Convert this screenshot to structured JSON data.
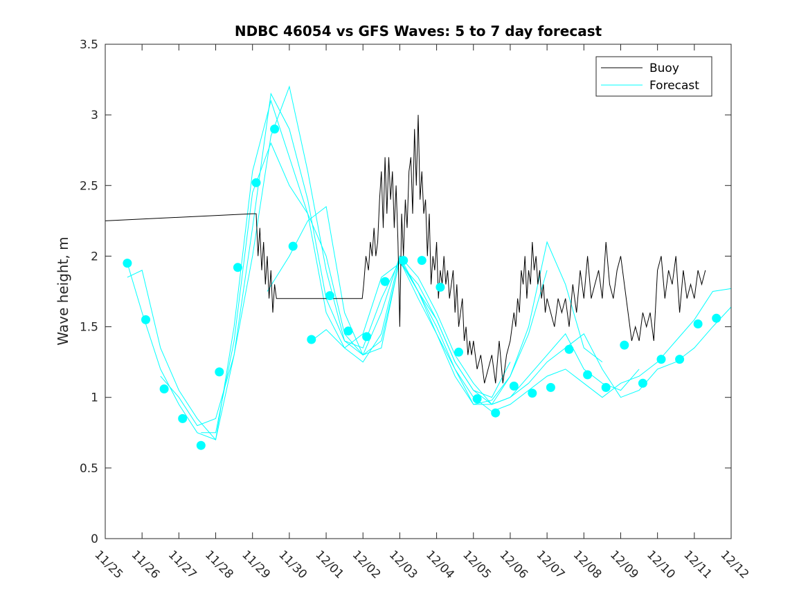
{
  "chart_data": {
    "type": "line",
    "title": "NDBC 46054 vs GFS Waves: 5 to 7 day forecast",
    "xlabel": "",
    "ylabel": "Wave height, m",
    "xlim": [
      0,
      17
    ],
    "ylim": [
      0,
      3.5
    ],
    "x_tick_labels": [
      "11/25",
      "11/26",
      "11/27",
      "11/28",
      "11/29",
      "11/30",
      "12/01",
      "12/02",
      "12/03",
      "12/04",
      "12/05",
      "12/06",
      "12/07",
      "12/08",
      "12/09",
      "12/10",
      "12/11",
      "12/12"
    ],
    "y_ticks": [
      0,
      0.5,
      1,
      1.5,
      2,
      2.5,
      3,
      3.5
    ],
    "y_tick_labels": [
      "0",
      "0.5",
      "1",
      "1.5",
      "2",
      "2.5",
      "3",
      "3.5"
    ],
    "colors": {
      "buoy": "#000000",
      "forecast": "#00FFFF",
      "axes": "#262626"
    },
    "legend": {
      "position": "top-right",
      "entries": [
        "Buoy",
        "Forecast"
      ]
    },
    "buoy_series": {
      "name": "Buoy",
      "x": [
        0,
        4.0,
        4.05,
        4.1,
        4.15,
        4.2,
        4.25,
        4.3,
        4.35,
        4.4,
        4.45,
        4.5,
        4.55,
        4.6,
        4.65,
        4.7,
        4.75,
        5.0,
        5.5,
        6.0,
        6.5,
        6.98,
        7.02,
        7.08,
        7.15,
        7.2,
        7.25,
        7.3,
        7.35,
        7.4,
        7.45,
        7.5,
        7.55,
        7.6,
        7.65,
        7.7,
        7.75,
        7.8,
        7.85,
        7.9,
        7.95,
        8.0,
        8.05,
        8.1,
        8.15,
        8.2,
        8.25,
        8.3,
        8.35,
        8.4,
        8.45,
        8.5,
        8.55,
        8.6,
        8.65,
        8.7,
        8.75,
        8.8,
        8.85,
        8.9,
        8.95,
        9.0,
        9.05,
        9.1,
        9.15,
        9.2,
        9.25,
        9.3,
        9.35,
        9.4,
        9.45,
        9.5,
        9.55,
        9.6,
        9.65,
        9.7,
        9.75,
        9.8,
        9.85,
        9.9,
        9.95,
        10.0,
        10.1,
        10.2,
        10.3,
        10.4,
        10.5,
        10.6,
        10.7,
        10.8,
        10.9,
        11.0,
        11.05,
        11.1,
        11.15,
        11.2,
        11.25,
        11.3,
        11.35,
        11.4,
        11.45,
        11.5,
        11.55,
        11.6,
        11.65,
        11.7,
        11.75,
        11.8,
        11.85,
        11.9,
        11.95,
        12.0,
        12.1,
        12.2,
        12.3,
        12.4,
        12.5,
        12.6,
        12.7,
        12.8,
        12.9,
        13.0,
        13.1,
        13.2,
        13.3,
        13.4,
        13.5,
        13.6,
        13.7,
        13.8,
        13.9,
        14.0,
        14.1,
        14.2,
        14.3,
        14.4,
        14.5,
        14.6,
        14.7,
        14.8,
        14.9,
        15.0,
        15.1,
        15.2,
        15.3,
        15.4,
        15.5,
        15.6,
        15.7,
        15.8,
        15.9,
        16.0,
        16.1,
        16.2,
        16.3
      ],
      "y": [
        2.25,
        2.3,
        2.3,
        2.3,
        2.0,
        2.2,
        1.9,
        2.1,
        1.8,
        2.0,
        1.7,
        1.9,
        1.6,
        1.8,
        1.7,
        1.7,
        1.7,
        1.7,
        1.7,
        1.7,
        1.7,
        1.7,
        1.8,
        2.0,
        1.9,
        2.1,
        2.0,
        2.2,
        2.0,
        2.1,
        2.4,
        2.6,
        2.2,
        2.7,
        2.3,
        2.7,
        2.4,
        2.6,
        2.2,
        2.5,
        2.1,
        1.5,
        2.3,
        2.0,
        2.4,
        2.2,
        2.6,
        2.7,
        2.3,
        2.9,
        2.5,
        3.0,
        2.4,
        2.6,
        2.3,
        2.4,
        2.0,
        2.3,
        1.8,
        2.0,
        1.9,
        2.1,
        1.7,
        1.9,
        1.8,
        2.0,
        1.8,
        1.9,
        1.7,
        1.8,
        1.9,
        1.6,
        1.8,
        1.5,
        1.6,
        1.7,
        1.4,
        1.5,
        1.3,
        1.4,
        1.3,
        1.4,
        1.2,
        1.3,
        1.1,
        1.2,
        1.3,
        1.1,
        1.4,
        1.1,
        1.3,
        1.4,
        1.5,
        1.6,
        1.5,
        1.7,
        1.6,
        1.9,
        1.8,
        2.0,
        1.7,
        1.9,
        1.8,
        2.1,
        1.9,
        2.0,
        1.8,
        1.9,
        1.7,
        1.8,
        1.6,
        1.7,
        1.6,
        1.5,
        1.7,
        1.6,
        1.7,
        1.5,
        1.8,
        1.6,
        1.9,
        1.7,
        2.0,
        1.7,
        1.8,
        1.9,
        1.7,
        2.1,
        1.8,
        1.7,
        1.9,
        2.0,
        1.8,
        1.6,
        1.4,
        1.5,
        1.4,
        1.6,
        1.5,
        1.6,
        1.4,
        1.9,
        2.0,
        1.7,
        1.9,
        1.8,
        2.0,
        1.6,
        1.9,
        1.7,
        1.8,
        1.7,
        1.9,
        1.8,
        1.9
      ]
    },
    "forecast_series": [
      {
        "name": "Forecast",
        "x": [
          0.6,
          1.0,
          1.5,
          2.0,
          2.5,
          3.0,
          3.5,
          4.0,
          4.5,
          5.0,
          5.5,
          6.0,
          6.5,
          7.0,
          7.5,
          8.0,
          8.5,
          9.0,
          9.5,
          10.0,
          10.5,
          11.0
        ],
        "y": [
          1.95,
          1.6,
          1.2,
          0.95,
          0.75,
          0.7,
          1.5,
          2.6,
          3.1,
          2.7,
          2.3,
          1.6,
          1.35,
          1.45,
          1.85,
          1.95,
          1.8,
          1.55,
          1.25,
          1.05,
          1.0,
          1.25
        ]
      },
      {
        "name": "Forecast",
        "x": [
          0.6,
          1.0,
          1.5,
          2.0,
          2.5,
          3.0,
          3.5,
          4.0,
          4.5,
          5.0,
          5.5,
          6.0,
          6.5,
          7.0,
          7.5,
          8.0,
          8.5,
          9.0,
          9.5,
          10.0,
          10.5,
          11.0,
          11.5,
          12.0
        ],
        "y": [
          1.85,
          1.9,
          1.35,
          1.05,
          0.85,
          0.7,
          1.3,
          2.2,
          3.15,
          2.9,
          2.4,
          1.7,
          1.4,
          1.35,
          1.7,
          1.97,
          1.7,
          1.45,
          1.15,
          0.95,
          0.95,
          1.15,
          1.45,
          1.9
        ]
      },
      {
        "name": "Forecast",
        "x": [
          1.5,
          2.0,
          2.5,
          3.0,
          3.5,
          4.0,
          4.5,
          5.0,
          5.5,
          6.0,
          6.5,
          7.0,
          7.5,
          8.0,
          8.5,
          9.0,
          9.5,
          10.0,
          10.5,
          11.0,
          11.5,
          12.0,
          12.5,
          13.0,
          13.5
        ],
        "y": [
          1.15,
          1.0,
          0.8,
          0.85,
          1.3,
          2.0,
          2.85,
          3.2,
          2.6,
          1.9,
          1.4,
          1.3,
          1.6,
          2.0,
          1.75,
          1.5,
          1.2,
          0.95,
          0.98,
          1.15,
          1.5,
          2.1,
          1.8,
          1.35,
          1.25
        ]
      },
      {
        "name": "Forecast",
        "x": [
          2.6,
          3.0,
          3.5,
          4.0,
          4.5,
          5.0,
          5.5,
          6.0,
          6.5,
          7.0,
          7.5,
          8.0,
          8.5,
          9.0,
          9.5,
          10.0,
          10.5,
          11.0,
          11.5,
          12.0,
          12.5,
          13.0,
          13.5,
          14.0,
          14.5
        ],
        "y": [
          0.75,
          0.75,
          1.4,
          2.45,
          2.8,
          2.5,
          2.3,
          2.0,
          1.45,
          1.3,
          1.4,
          1.97,
          1.75,
          1.55,
          1.25,
          1.05,
          0.95,
          1.0,
          1.15,
          1.3,
          1.45,
          1.2,
          1.1,
          1.05,
          1.2
        ]
      },
      {
        "name": "Forecast",
        "x": [
          4.4,
          5.0,
          5.5,
          6.0,
          6.5,
          7.0,
          7.5,
          8.0,
          8.5,
          9.0,
          9.5,
          10.0,
          10.5,
          11.0,
          11.5,
          12.0,
          12.5,
          13.0,
          13.5,
          14.0,
          14.5,
          15.0,
          15.5,
          16.0,
          16.5,
          17.0
        ],
        "y": [
          1.75,
          2.0,
          2.25,
          2.35,
          1.6,
          1.3,
          1.35,
          1.98,
          1.75,
          1.45,
          1.2,
          1.0,
          0.9,
          0.95,
          1.05,
          1.15,
          1.2,
          1.1,
          1.0,
          1.1,
          1.15,
          1.25,
          1.4,
          1.55,
          1.75,
          1.77
        ]
      },
      {
        "name": "Forecast",
        "x": [
          5.6,
          6.0,
          6.5,
          7.0,
          7.5,
          8.0,
          8.5,
          9.0,
          9.5,
          10.0,
          10.5,
          11.0,
          11.5,
          12.0,
          12.5,
          13.0,
          13.5,
          14.0,
          14.5,
          15.0,
          15.5,
          16.0,
          16.5,
          17.0
        ],
        "y": [
          1.4,
          1.48,
          1.35,
          1.25,
          1.45,
          2.0,
          1.85,
          1.6,
          1.3,
          1.1,
          0.95,
          1.0,
          1.1,
          1.25,
          1.35,
          1.45,
          1.2,
          1.0,
          1.05,
          1.2,
          1.25,
          1.35,
          1.5,
          1.64
        ]
      }
    ],
    "forecast_markers": {
      "x": [
        0.6,
        1.1,
        1.6,
        2.1,
        2.6,
        3.1,
        3.6,
        4.1,
        4.6,
        5.1,
        5.6,
        6.1,
        6.6,
        7.1,
        7.6,
        8.1,
        8.6,
        9.1,
        9.6,
        10.1,
        10.6,
        11.1,
        11.6,
        12.1,
        12.6,
        13.1,
        13.6,
        14.1,
        14.6,
        15.1,
        15.6,
        16.1,
        16.6
      ],
      "y": [
        1.95,
        1.55,
        1.06,
        0.85,
        0.66,
        1.18,
        1.92,
        2.52,
        2.9,
        2.07,
        1.41,
        1.72,
        1.47,
        1.43,
        1.82,
        1.97,
        1.97,
        1.78,
        1.32,
        0.99,
        0.89,
        1.08,
        1.03,
        1.07,
        1.34,
        1.16,
        1.07,
        1.37,
        1.1,
        1.27,
        1.27,
        1.52,
        1.56
      ]
    }
  }
}
